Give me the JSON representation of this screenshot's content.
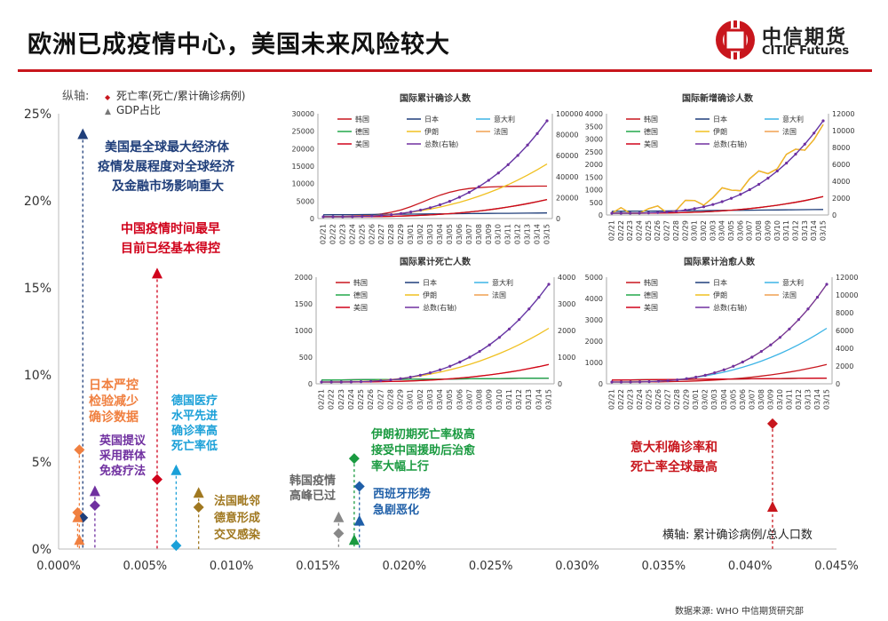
{
  "header": {
    "title": "欧洲已成疫情中心，美国未来风险较大",
    "logo_cn": "中信期货",
    "logo_en": "CITIC Futures"
  },
  "main_chart": {
    "legend_title": "纵轴:",
    "legend_death": "死亡率(死亡/累计确诊病例)",
    "legend_gdp": "GDP占比",
    "y_ticks": [
      "25%",
      "20%",
      "15%",
      "10%",
      "5%",
      "0%"
    ],
    "x_ticks": [
      "0.000%",
      "0.005%",
      "0.010%",
      "0.015%",
      "0.020%",
      "0.025%",
      "0.030%",
      "0.035%",
      "0.040%",
      "0.045%"
    ],
    "x_axis_label": "横轴: 累计确诊病例/总人口数",
    "annotations": {
      "usa": [
        "美国是全球最大经济体",
        "疫情发展程度对全球经济",
        "及金融市场影响重大"
      ],
      "china": [
        "中国疫情时间最早",
        "目前已经基本得控"
      ],
      "japan": [
        "日本严控",
        "检验减少",
        "确诊数据"
      ],
      "uk": [
        "英国提议",
        "采用群体",
        "免疫疗法"
      ],
      "germany": [
        "德国医疗",
        "水平先进",
        "确诊率高",
        "死亡率低"
      ],
      "france": [
        "法国毗邻",
        "德意形成",
        "交叉感染"
      ],
      "korea": [
        "韩国疫情",
        "高峰已过"
      ],
      "iran": [
        "伊朗初期死亡率极高",
        "接受中国援助后治愈",
        "率大幅上行"
      ],
      "spain": [
        "西班牙形势",
        "急剧恶化"
      ],
      "italy": [
        "意大利确诊率和",
        "死亡率全球最高"
      ]
    }
  },
  "chart_data": [
    {
      "type": "scatter",
      "title": "",
      "xlabel": "横轴: 累计确诊病例/总人口数",
      "ylabel": "纵轴:",
      "xlim": [
        0,
        0.045
      ],
      "ylim": [
        0,
        25
      ],
      "series": [
        {
          "name": "死亡率(死亡/累计确诊病例)",
          "x": [
            0.0014,
            0.0021,
            0.0057,
            0.0068,
            0.0081,
            0.0162,
            0.0171,
            0.0174,
            0.0413,
            0.0012,
            0.0011
          ],
          "y": [
            1.8,
            2.5,
            4.0,
            0.2,
            2.4,
            0.9,
            5.2,
            3.6,
            7.2,
            5.7,
            2.1
          ]
        },
        {
          "name": "GDP占比",
          "x": [
            0.0014,
            0.0021,
            0.0057,
            0.0068,
            0.0081,
            0.0162,
            0.0171,
            0.0174,
            0.0413,
            0.0012,
            0.0011
          ],
          "y": [
            23.8,
            3.3,
            15.8,
            4.5,
            3.2,
            1.8,
            0.5,
            1.6,
            2.4,
            0.5,
            1.8
          ]
        }
      ]
    },
    {
      "type": "line",
      "title": "国际累计确诊人数",
      "yleft_ticks": [
        "30000",
        "25000",
        "20000",
        "15000",
        "10000",
        "5000",
        "0"
      ],
      "yright_ticks": [
        "100000",
        "80000",
        "60000",
        "40000",
        "20000",
        "0"
      ],
      "categories": [
        "02/21",
        "02/22",
        "02/23",
        "02/24",
        "02/25",
        "02/26",
        "02/27",
        "02/28",
        "02/29",
        "03/01",
        "03/02",
        "03/03",
        "03/04",
        "03/05",
        "03/06",
        "03/07",
        "03/08",
        "03/09",
        "03/10",
        "03/11",
        "03/12",
        "03/13",
        "03/14",
        "03/15"
      ],
      "legend": [
        "韩国",
        "日本",
        "意大利",
        "德国",
        "伊朗",
        "法国",
        "美国",
        "总数(右轴)"
      ]
    },
    {
      "type": "line",
      "title": "国际新增确诊人数",
      "yleft_ticks": [
        "4000",
        "3500",
        "3000",
        "2500",
        "2000",
        "1500",
        "1000",
        "500",
        "0"
      ],
      "yright_ticks": [
        "12000",
        "10000",
        "8000",
        "6000",
        "4000",
        "2000",
        "0"
      ],
      "legend": [
        "韩国",
        "日本",
        "意大利",
        "德国",
        "伊朗",
        "法国",
        "美国",
        "总数(右轴)"
      ]
    },
    {
      "type": "line",
      "title": "国际累计死亡人数",
      "yleft_ticks": [
        "2000",
        "1500",
        "1000",
        "500",
        "0"
      ],
      "yright_ticks": [
        "4000",
        "3000",
        "2000",
        "1000",
        "0"
      ],
      "legend": [
        "韩国",
        "日本",
        "意大利",
        "德国",
        "伊朗",
        "法国",
        "美国",
        "总数(右轴)"
      ]
    },
    {
      "type": "line",
      "title": "国际累计治愈人数",
      "yleft_ticks": [
        "5000",
        "4000",
        "3000",
        "2000",
        "1000",
        "0"
      ],
      "yright_ticks": [
        "12000",
        "10000",
        "8000",
        "6000",
        "4000",
        "2000",
        "0"
      ],
      "legend": [
        "韩国",
        "日本",
        "意大利",
        "德国",
        "伊朗",
        "法国",
        "美国",
        "总数(右轴)"
      ]
    }
  ],
  "colors": {
    "korea": "#c8161d",
    "japan": "#1f3e7a",
    "italy": "#3cb4e6",
    "germany": "#22a84a",
    "iran": "#f0c020",
    "france": "#f0a050",
    "usa": "#d0021b",
    "total": "#7030a0"
  },
  "footer": {
    "source": "数据来源: WHO 中信期货研究部"
  }
}
